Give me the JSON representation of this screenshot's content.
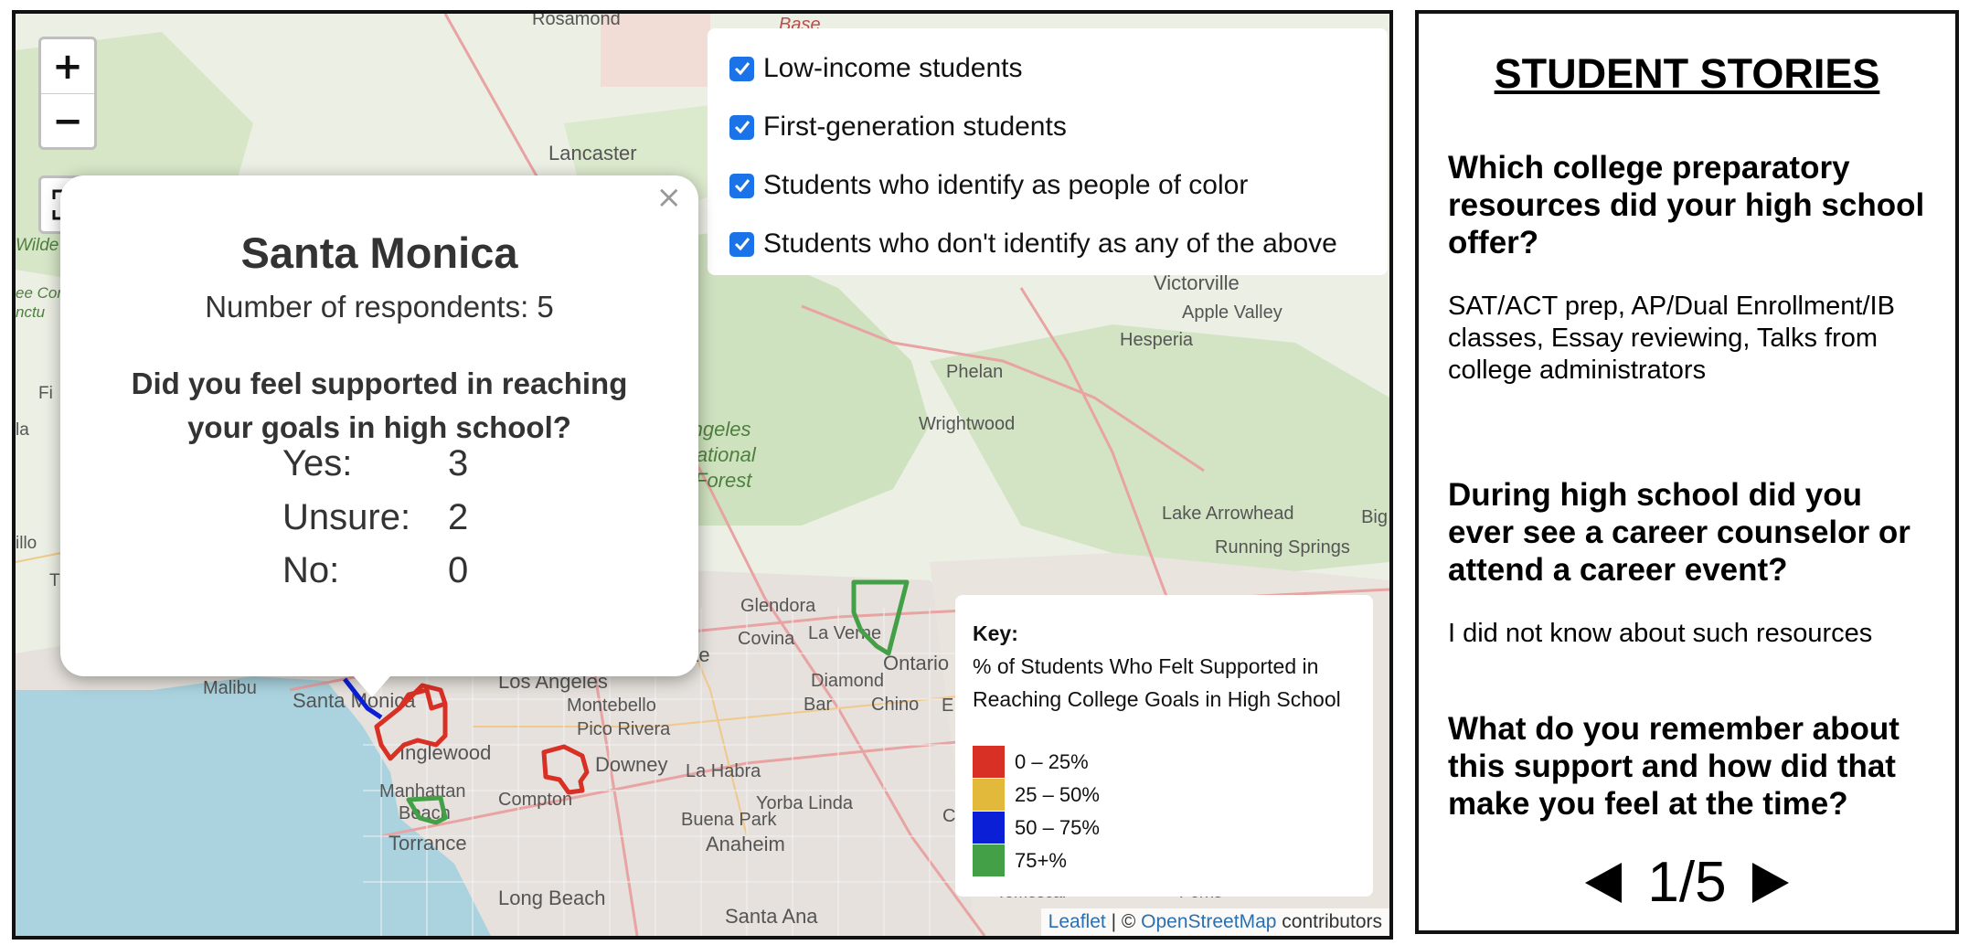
{
  "map": {
    "zoom_in": "+",
    "zoom_out": "−",
    "layers": [
      {
        "label": "Low-income students",
        "checked": true
      },
      {
        "label": "First-generation students",
        "checked": true
      },
      {
        "label": "Students who identify as people of color",
        "checked": true
      },
      {
        "label": "Students who don't identify as any of the above",
        "checked": true
      }
    ],
    "place_labels": [
      "Rosamond",
      "Base",
      "Lancaster",
      "Victorville",
      "Apple Valley",
      "Phelan",
      "Hesperia",
      "Wrightwood",
      "Angeles",
      "National",
      "Forest",
      "Lake Arrowhead",
      "Big",
      "Running Springs",
      "Glendora",
      "Covina",
      "La Verne",
      "Ontario",
      "Diamond",
      "Bar",
      "Chino",
      "Malibu",
      "Santa Monica",
      "Los Angeles",
      "Montebello",
      "Pico Rivera",
      "Inglewood",
      "Downey",
      "La Habra",
      "Manhattan",
      "Beach",
      "Compton",
      "Yorba Linda",
      "Buena Park",
      "Torrance",
      "Anaheim",
      "Long Beach",
      "Santa Ana",
      "Temescal",
      "Perris",
      "Wilde",
      "Fi",
      "la",
      "illo",
      "T",
      "ate",
      "E",
      "C",
      "ee Cor",
      "nctu"
    ],
    "popup": {
      "close": "×",
      "title": "Santa Monica",
      "respondents": "Number of respondents: 5",
      "question": "Did you feel supported in reaching your goals in high school?",
      "answers": [
        {
          "label": "Yes:",
          "value": "3"
        },
        {
          "label": "Unsure:",
          "value": "2"
        },
        {
          "label": "No:",
          "value": "0"
        }
      ]
    },
    "key": {
      "title": "Key:",
      "line1": "% of Students Who Felt Supported in",
      "line2": "Reaching College Goals in High School",
      "items": [
        {
          "label": "0 – 25%",
          "color": "#d93025"
        },
        {
          "label": "25 – 50%",
          "color": "#e3b93b"
        },
        {
          "label": "50 – 75%",
          "color": "#0a1fd6"
        },
        {
          "label": "75+%",
          "color": "#43a047"
        }
      ]
    },
    "attribution": {
      "leaflet": "Leaflet",
      "sep": " | © ",
      "osm": "OpenStreetMap",
      "rest": " contributors"
    }
  },
  "stories": {
    "title": "STUDENT STORIES",
    "items": [
      {
        "q": "Which college preparatory resources did your high school offer?",
        "a": "SAT/ACT prep, AP/Dual Enrollment/IB classes, Essay reviewing, Talks from college administrators"
      },
      {
        "q": "During high school did you ever see a career counselor or attend a career event?",
        "a": "I did not know about such resources"
      },
      {
        "q": "What do you remember about this support and how did that make you feel at the time?",
        "a": ""
      }
    ],
    "pager": "1/5"
  }
}
